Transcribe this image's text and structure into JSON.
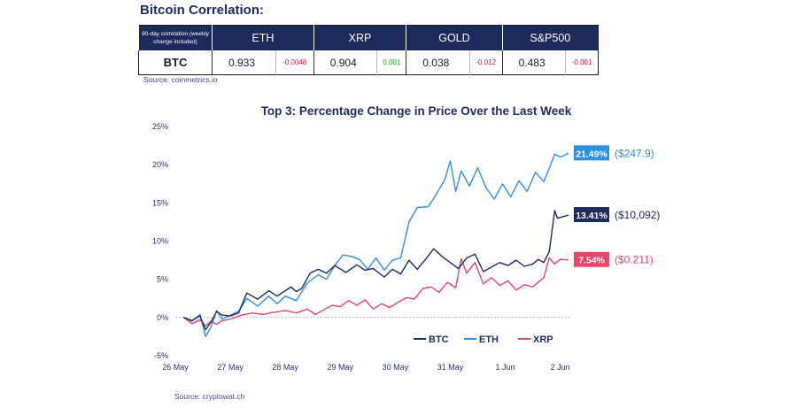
{
  "correlation": {
    "title": "Bitcoin Correlation:",
    "header_label": "90-day correlation (weekly change included)",
    "columns": [
      "ETH",
      "XRP",
      "GOLD",
      "S&P500"
    ],
    "row_label": "BTC",
    "cells": [
      {
        "value": "0.933",
        "change": "-0.0048",
        "dir": "neg"
      },
      {
        "value": "0.904",
        "change": "0.001",
        "dir": "pos"
      },
      {
        "value": "0.038",
        "change": "-0.012",
        "dir": "neg"
      },
      {
        "value": "0.483",
        "change": "-0.001",
        "dir": "neg"
      }
    ],
    "source": "Source: coinmetrics.io"
  },
  "chart_source": "Source: cryptowat.ch",
  "chart_data": {
    "type": "line",
    "title": "Top 3: Percentage Change in Price Over the Last Week",
    "xlabel": "",
    "ylabel": "",
    "x_ticks": [
      "26 May",
      "27 May",
      "28 May",
      "29 May",
      "30 May",
      "31 May",
      "1 Jun",
      "2 Jun"
    ],
    "xlim": [
      0,
      7.2
    ],
    "ylim": [
      -5,
      25
    ],
    "y_ticks": [
      -5,
      0,
      5,
      10,
      15,
      20,
      25
    ],
    "y_tick_labels": [
      "-5%",
      "0%",
      "5%",
      "10%",
      "15%",
      "20%",
      "25%"
    ],
    "grid": false,
    "legend_position": "bottom-right",
    "series": [
      {
        "name": "BTC",
        "color": "#1c2a5c",
        "end_label": "13.41%",
        "end_price": "($10,092)",
        "points": [
          [
            0.15,
            0
          ],
          [
            0.3,
            -0.4
          ],
          [
            0.45,
            0.2
          ],
          [
            0.55,
            -1.6
          ],
          [
            0.65,
            -0.6
          ],
          [
            0.75,
            0.8
          ],
          [
            0.85,
            0.3
          ],
          [
            1.0,
            0.2
          ],
          [
            1.15,
            0.6
          ],
          [
            1.3,
            3.2
          ],
          [
            1.5,
            2.4
          ],
          [
            1.7,
            3.5
          ],
          [
            1.85,
            2.8
          ],
          [
            2.0,
            3.5
          ],
          [
            2.1,
            4.0
          ],
          [
            2.2,
            3.4
          ],
          [
            2.3,
            3.8
          ],
          [
            2.45,
            5.8
          ],
          [
            2.6,
            6.3
          ],
          [
            2.75,
            5.8
          ],
          [
            2.9,
            6.8
          ],
          [
            3.1,
            5.9
          ],
          [
            3.3,
            6.9
          ],
          [
            3.45,
            6.2
          ],
          [
            3.6,
            6.4
          ],
          [
            3.8,
            5.3
          ],
          [
            3.95,
            6.3
          ],
          [
            4.1,
            5.7
          ],
          [
            4.25,
            7.5
          ],
          [
            4.4,
            6.3
          ],
          [
            4.55,
            7.6
          ],
          [
            4.7,
            9.0
          ],
          [
            4.85,
            8.0
          ],
          [
            5.0,
            7.2
          ],
          [
            5.15,
            6.4
          ],
          [
            5.3,
            7.8
          ],
          [
            5.45,
            8.3
          ],
          [
            5.6,
            6.0
          ],
          [
            5.75,
            6.6
          ],
          [
            5.9,
            7.2
          ],
          [
            6.05,
            6.8
          ],
          [
            6.2,
            7.5
          ],
          [
            6.35,
            6.7
          ],
          [
            6.5,
            7.0
          ],
          [
            6.6,
            7.6
          ],
          [
            6.7,
            7.2
          ],
          [
            6.8,
            8.6
          ],
          [
            6.9,
            14.0
          ],
          [
            6.95,
            13.0
          ],
          [
            7.05,
            13.2
          ],
          [
            7.15,
            13.41
          ]
        ]
      },
      {
        "name": "ETH",
        "color": "#2e8fe0",
        "end_label": "21.49%",
        "end_price": "($247.9)",
        "points": [
          [
            0.15,
            0
          ],
          [
            0.3,
            -0.5
          ],
          [
            0.45,
            0.4
          ],
          [
            0.55,
            -2.5
          ],
          [
            0.65,
            -1.2
          ],
          [
            0.75,
            0.9
          ],
          [
            0.85,
            -0.2
          ],
          [
            1.0,
            0.3
          ],
          [
            1.15,
            0.8
          ],
          [
            1.3,
            2.5
          ],
          [
            1.5,
            1.5
          ],
          [
            1.7,
            2.8
          ],
          [
            1.85,
            1.8
          ],
          [
            2.0,
            2.8
          ],
          [
            2.2,
            2.2
          ],
          [
            2.4,
            4.5
          ],
          [
            2.6,
            5.6
          ],
          [
            2.75,
            5.0
          ],
          [
            2.9,
            6.8
          ],
          [
            3.05,
            8.2
          ],
          [
            3.2,
            8.0
          ],
          [
            3.35,
            7.6
          ],
          [
            3.5,
            6.3
          ],
          [
            3.65,
            7.8
          ],
          [
            3.8,
            6.2
          ],
          [
            3.95,
            7.5
          ],
          [
            4.1,
            7.8
          ],
          [
            4.25,
            12.5
          ],
          [
            4.4,
            14.4
          ],
          [
            4.6,
            14.5
          ],
          [
            4.75,
            16.2
          ],
          [
            4.9,
            18.0
          ],
          [
            5.0,
            20.5
          ],
          [
            5.1,
            16.5
          ],
          [
            5.2,
            19.2
          ],
          [
            5.35,
            17.2
          ],
          [
            5.5,
            19.6
          ],
          [
            5.65,
            17.0
          ],
          [
            5.8,
            15.5
          ],
          [
            5.95,
            17.5
          ],
          [
            6.1,
            15.8
          ],
          [
            6.25,
            17.9
          ],
          [
            6.4,
            16.5
          ],
          [
            6.55,
            19.0
          ],
          [
            6.7,
            17.8
          ],
          [
            6.8,
            19.5
          ],
          [
            6.9,
            21.4
          ],
          [
            7.0,
            21.0
          ],
          [
            7.1,
            21.3
          ],
          [
            7.15,
            21.49
          ]
        ]
      },
      {
        "name": "XRP",
        "color": "#e8446a",
        "end_label": "7.54%",
        "end_price": "($0.211)",
        "points": [
          [
            0.15,
            0
          ],
          [
            0.3,
            -0.8
          ],
          [
            0.45,
            -0.3
          ],
          [
            0.55,
            -1.1
          ],
          [
            0.65,
            -0.5
          ],
          [
            0.75,
            -0.9
          ],
          [
            0.85,
            -0.4
          ],
          [
            1.0,
            -0.2
          ],
          [
            1.2,
            0.3
          ],
          [
            1.4,
            0.6
          ],
          [
            1.6,
            0.4
          ],
          [
            1.8,
            0.7
          ],
          [
            2.0,
            0.9
          ],
          [
            2.2,
            0.6
          ],
          [
            2.4,
            1.1
          ],
          [
            2.55,
            0.4
          ],
          [
            2.7,
            1.0
          ],
          [
            2.85,
            1.6
          ],
          [
            3.0,
            1.4
          ],
          [
            3.15,
            2.2
          ],
          [
            3.3,
            1.6
          ],
          [
            3.45,
            2.3
          ],
          [
            3.6,
            1.1
          ],
          [
            3.75,
            1.8
          ],
          [
            3.9,
            1.3
          ],
          [
            4.05,
            2.0
          ],
          [
            4.2,
            2.6
          ],
          [
            4.35,
            2.4
          ],
          [
            4.5,
            3.8
          ],
          [
            4.65,
            4.0
          ],
          [
            4.8,
            3.3
          ],
          [
            4.95,
            4.6
          ],
          [
            5.1,
            3.9
          ],
          [
            5.2,
            7.7
          ],
          [
            5.3,
            5.8
          ],
          [
            5.45,
            7.2
          ],
          [
            5.6,
            4.4
          ],
          [
            5.75,
            5.2
          ],
          [
            5.9,
            4.2
          ],
          [
            6.05,
            4.8
          ],
          [
            6.2,
            3.6
          ],
          [
            6.35,
            4.3
          ],
          [
            6.5,
            4.0
          ],
          [
            6.6,
            4.6
          ],
          [
            6.7,
            5.2
          ],
          [
            6.8,
            7.8
          ],
          [
            6.9,
            7.0
          ],
          [
            7.0,
            7.6
          ],
          [
            7.15,
            7.54
          ]
        ]
      }
    ]
  }
}
